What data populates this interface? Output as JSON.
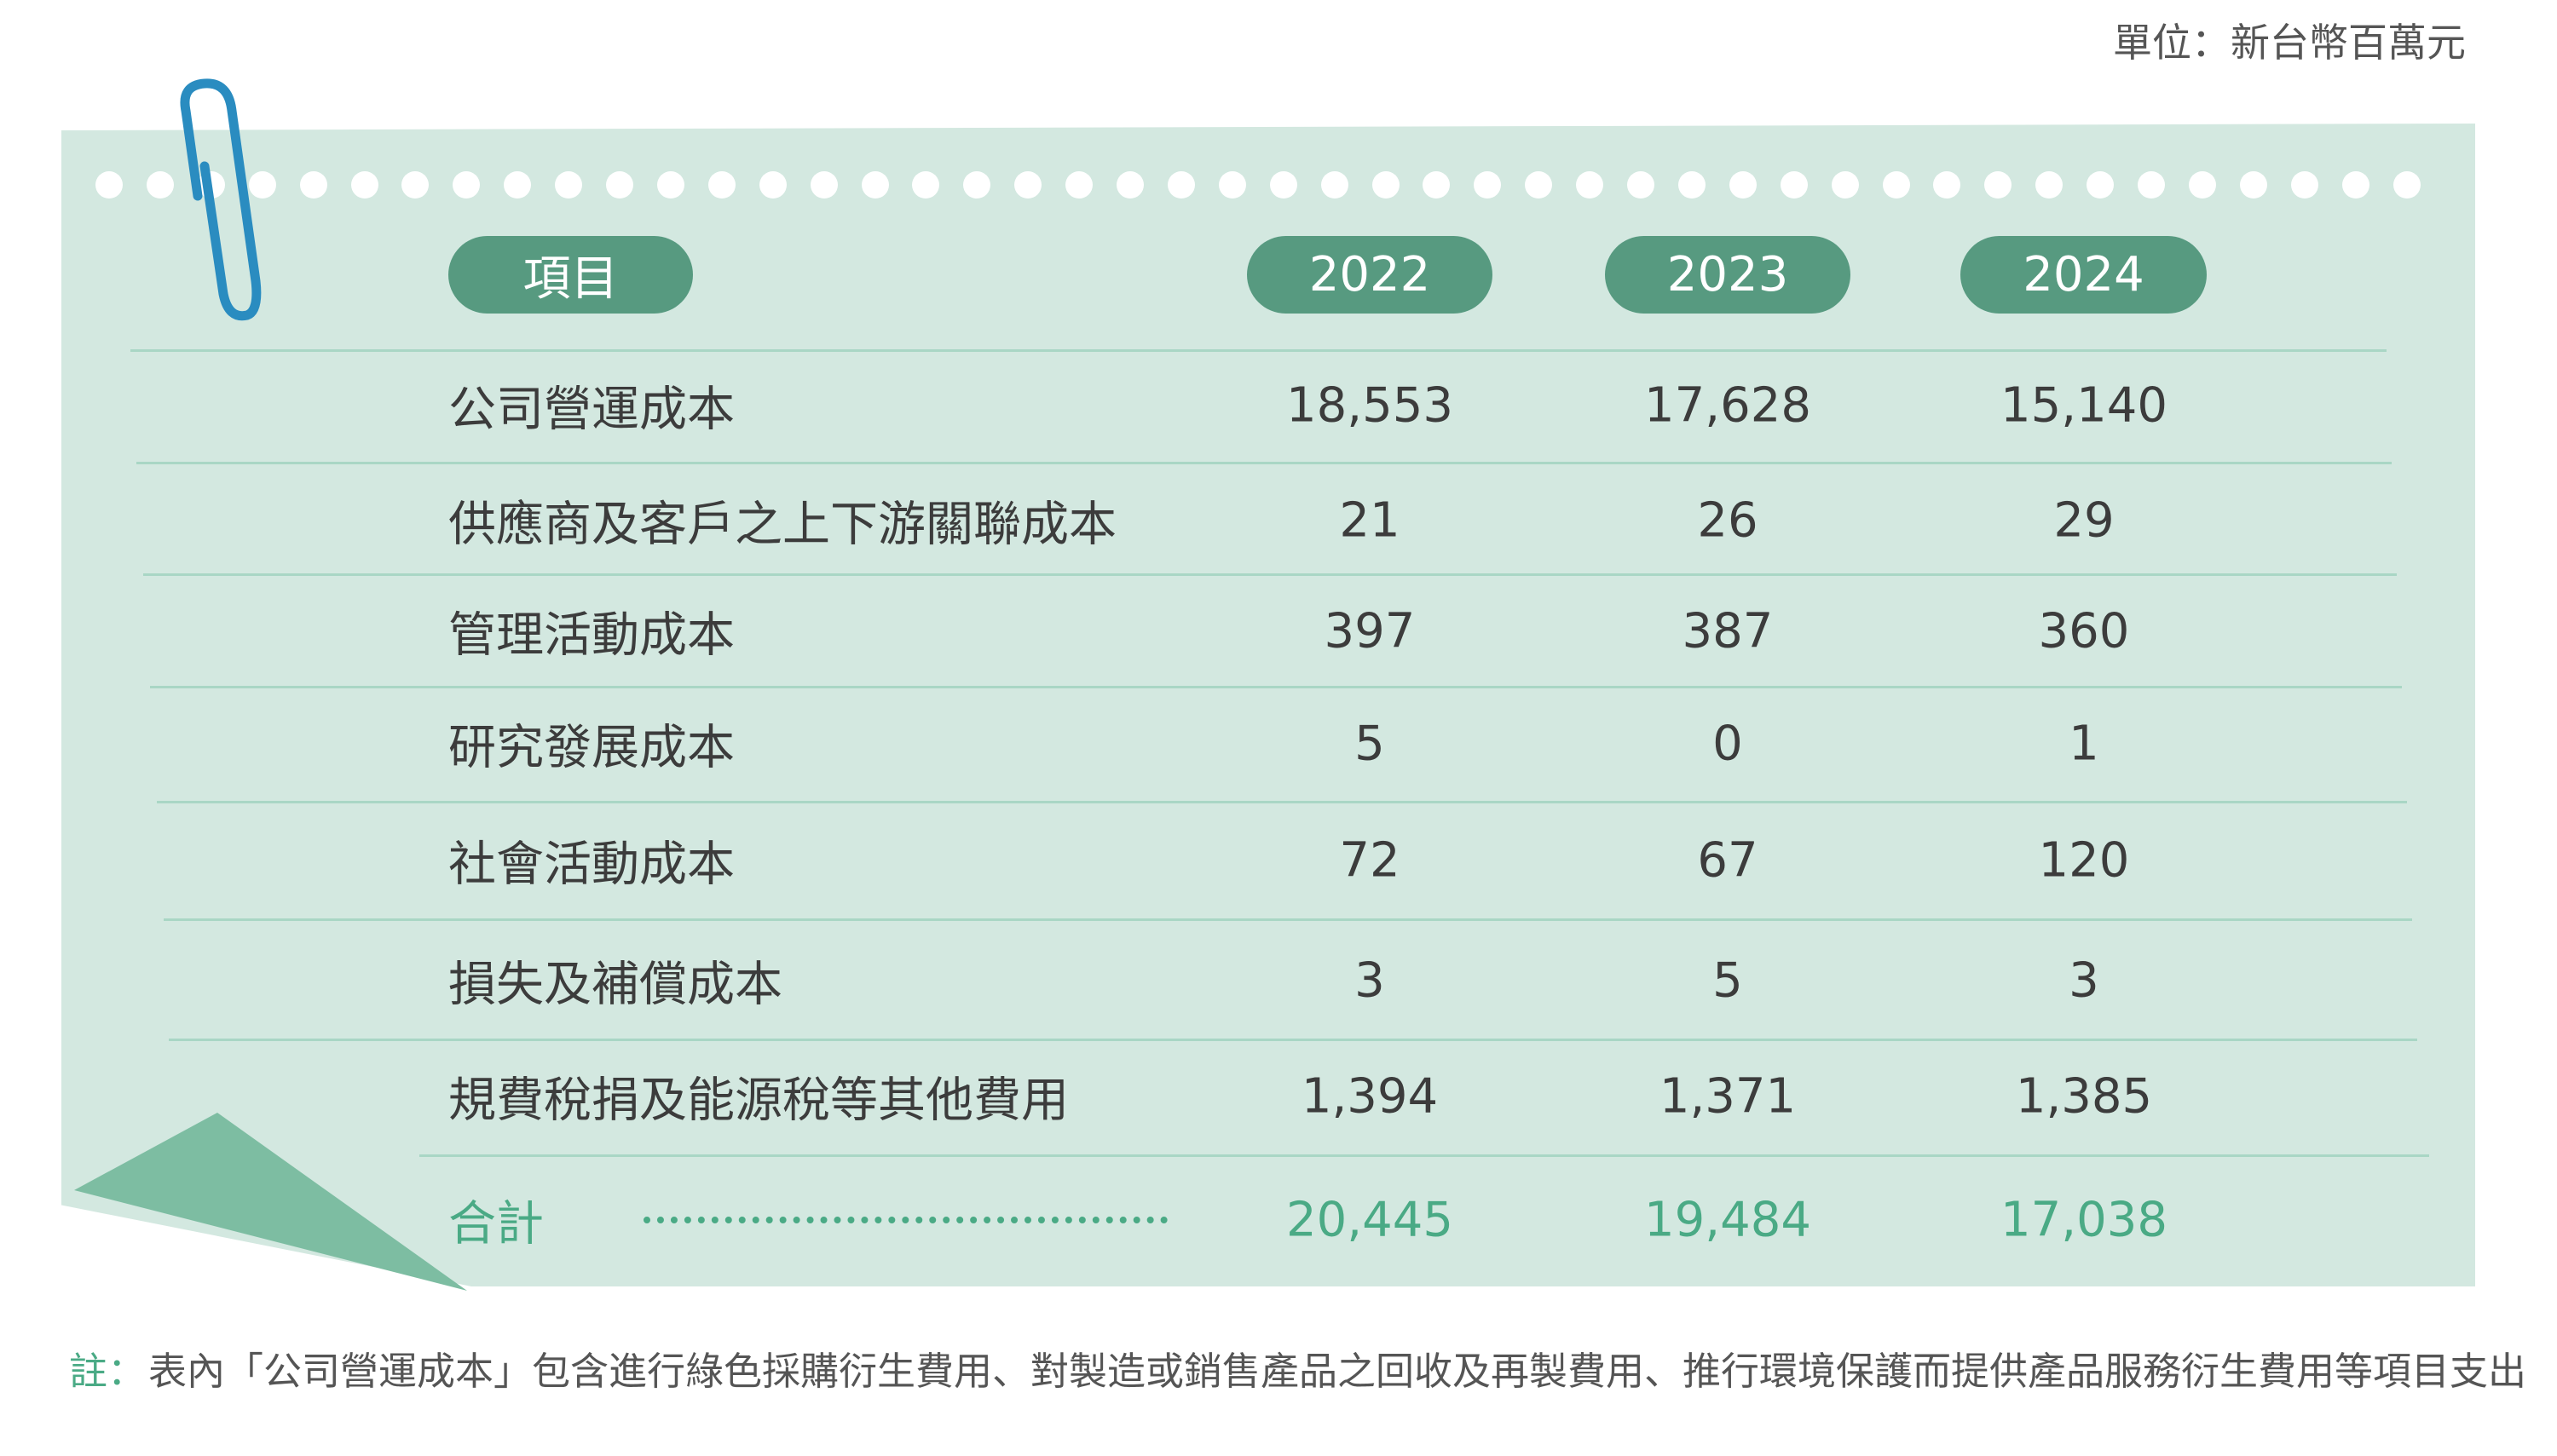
{
  "unit_label": "單位：新台幣百萬元",
  "table": {
    "header": {
      "item": "項目",
      "years": [
        "2022",
        "2023",
        "2024"
      ]
    },
    "rows": [
      {
        "label": "公司營運成本",
        "values": [
          "18,553",
          "17,628",
          "15,140"
        ]
      },
      {
        "label": "供應商及客戶之上下游關聯成本",
        "values": [
          "21",
          "26",
          "29"
        ]
      },
      {
        "label": "管理活動成本",
        "values": [
          "397",
          "387",
          "360"
        ]
      },
      {
        "label": "研究發展成本",
        "values": [
          "5",
          "0",
          "1"
        ]
      },
      {
        "label": "社會活動成本",
        "values": [
          "72",
          "67",
          "120"
        ]
      },
      {
        "label": "損失及補償成本",
        "values": [
          "3",
          "5",
          "3"
        ]
      },
      {
        "label": "規費稅捐及能源稅等其他費用",
        "values": [
          "1,394",
          "1,371",
          "1,385"
        ]
      }
    ],
    "total": {
      "label": "合計",
      "values": [
        "20,445",
        "19,484",
        "17,038"
      ]
    }
  },
  "note": {
    "label": "註：",
    "text": "表內「公司營運成本」包含進行綠色採購衍生費用、對製造或銷售產品之回收及再製費用、推行環境保護而提供產品服務衍生費用等項目支出"
  },
  "colors": {
    "card": "#d3e8e0",
    "pill": "#579a80",
    "total": "#4aaa85",
    "paperclip": "#2a8cc0"
  }
}
